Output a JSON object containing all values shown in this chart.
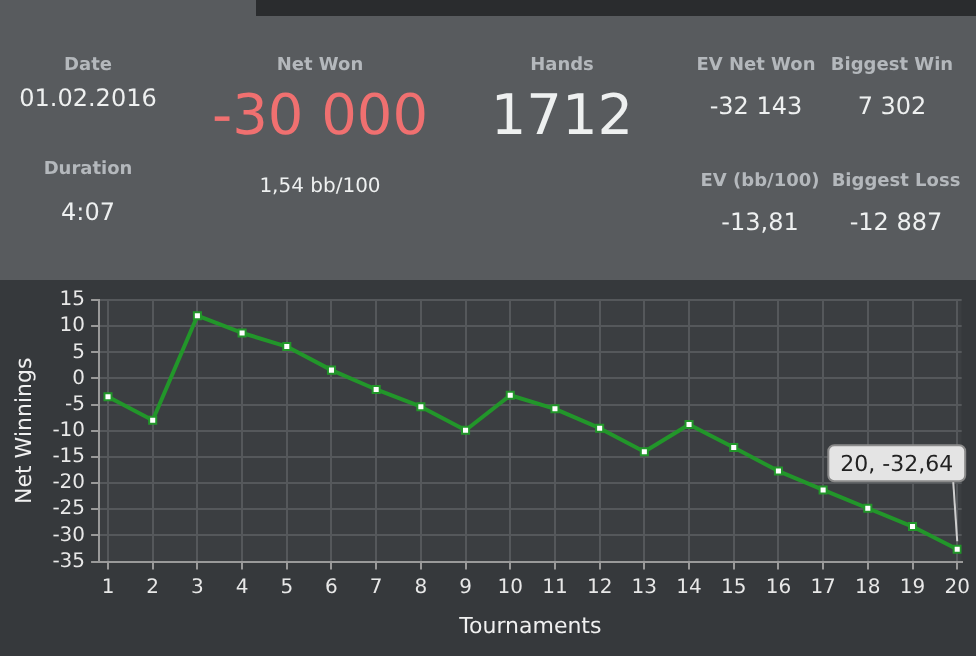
{
  "chart_data": [
    {
      "type": "other",
      "annotations": [
        "Date",
        "01.02.2016",
        "Duration",
        "4:07",
        "Net Won",
        "-30 000",
        "1,54 bb/100",
        "Hands",
        "1712",
        "EV Net Won",
        "-32 143",
        "EV (bb/100)",
        "-13,81",
        "Biggest Win",
        "7 302",
        "Biggest Loss",
        "-12 887"
      ]
    },
    {
      "type": "line",
      "xlabel": "Tournaments",
      "ylabel": "Net Winnings",
      "x": [
        1,
        2,
        3,
        4,
        5,
        6,
        7,
        8,
        9,
        10,
        11,
        12,
        13,
        14,
        15,
        16,
        17,
        18,
        19,
        20
      ],
      "series": [
        {
          "color": "#22962a",
          "values": [
            -3.5,
            -8,
            12,
            8.7,
            6.1,
            1.6,
            -2.1,
            -5.4,
            -9.9,
            -3.2,
            -5.8,
            -9.5,
            -14,
            -8.8,
            -13.2,
            -17.7,
            -21.3,
            -24.8,
            -28.3,
            -32.64
          ]
        }
      ],
      "xlim": [
        0.8,
        20.1
      ],
      "xticks": [
        1,
        2,
        3,
        4,
        5,
        6,
        7,
        8,
        9,
        10,
        11,
        12,
        13,
        14,
        15,
        16,
        17,
        18,
        19,
        20
      ],
      "ylim": [
        -35,
        15
      ],
      "yticks": [
        -35,
        -30,
        -25,
        -20,
        -15,
        -10,
        -5,
        0,
        5,
        10,
        15
      ],
      "grid": true,
      "legend": false,
      "marker": "square",
      "line_style": "solid",
      "annotations": [
        {
          "text": "20, -32,64",
          "x": 20,
          "y": -32.64
        }
      ]
    }
  ]
}
